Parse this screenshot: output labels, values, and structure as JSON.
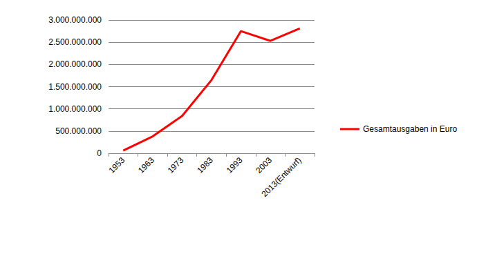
{
  "chart_data": {
    "type": "line",
    "categories": [
      "1953",
      "1963",
      "1973",
      "1983",
      "1993",
      "2003",
      "2013(Entwurf)"
    ],
    "series": [
      {
        "name": "Gesamtausgaben in Euro",
        "color": "#ff0000",
        "values": [
          60000000,
          380000000,
          840000000,
          1650000000,
          2750000000,
          2530000000,
          2810000000
        ]
      }
    ],
    "ylim": [
      0,
      3000000000
    ],
    "yticks": [
      0,
      {
        "value": 500000000,
        "label": "500.000.000"
      },
      {
        "value": 1000000000,
        "label": "1.000.000.000"
      },
      {
        "value": 1500000000,
        "label": "1.500.000.000"
      },
      {
        "value": 2000000000,
        "label": "2.000.000.000"
      },
      {
        "value": 2500000000,
        "label": "2.500.000.000"
      },
      {
        "value": 3000000000,
        "label": "3.000.000.000"
      }
    ],
    "grid": true,
    "legend": "right",
    "marker": "none"
  }
}
